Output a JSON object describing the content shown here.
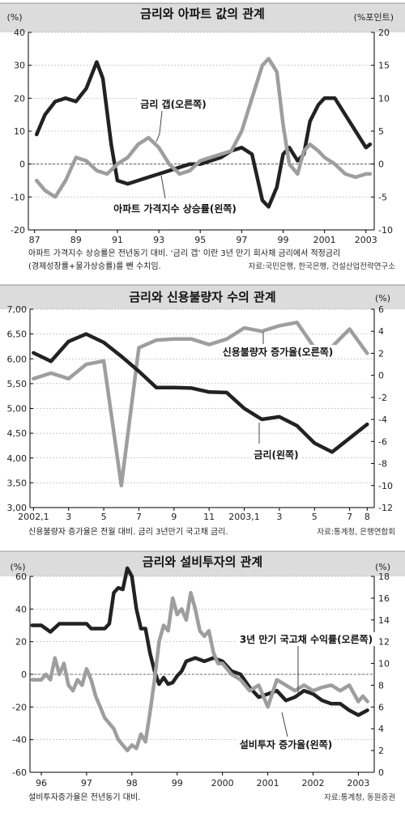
{
  "chart_data": [
    {
      "type": "line",
      "title": "금리와 아파트 값의 관계",
      "ylabel_left": "(%)",
      "ylabel_right": "(%포인트)",
      "ylim_left": [
        -20,
        40
      ],
      "yticks_left": [
        "40",
        "30",
        "20",
        "10",
        "0",
        "-10",
        "-20"
      ],
      "ylim_right": [
        -10,
        20
      ],
      "yticks_right": [
        "20",
        "15",
        "10",
        "5",
        "0",
        "-5",
        "-10"
      ],
      "x_tick_labels": [
        "87",
        "89",
        "91",
        "93",
        "95",
        "97",
        "99",
        "2001",
        "2003"
      ],
      "series": [
        {
          "name": "금리 갭(오른쪽)",
          "axis": "right",
          "color": "#222222",
          "x": [
            1987.1,
            1987.5,
            1988.0,
            1988.5,
            1989.0,
            1989.5,
            1990.0,
            1990.3,
            1990.7,
            1991.0,
            1991.5,
            1992.0,
            1992.5,
            1993.0,
            1993.5,
            1994.0,
            1994.5,
            1995.0,
            1995.5,
            1996.0,
            1996.5,
            1997.0,
            1997.5,
            1998.0,
            1998.3,
            1998.7,
            1999.0,
            1999.3,
            1999.7,
            2000.0,
            2000.3,
            2000.7,
            2001.0,
            2001.5,
            2002.0,
            2002.5,
            2003.0,
            2003.2
          ],
          "values": [
            4.5,
            7.5,
            9.5,
            10.0,
            9.5,
            11.5,
            15.5,
            13.0,
            3.0,
            -2.5,
            -3.0,
            -2.5,
            -2.0,
            -1.5,
            -1.0,
            -0.5,
            0.0,
            0.0,
            0.5,
            1.0,
            2.0,
            2.5,
            1.5,
            -5.5,
            -6.5,
            -3.5,
            1.5,
            2.5,
            0.5,
            1.5,
            6.5,
            9.0,
            10.0,
            10.0,
            7.5,
            5.0,
            2.5,
            3.0
          ]
        },
        {
          "name": "아파트 가격지수 상승률(왼쪽)",
          "axis": "left",
          "color": "#9e9e9e",
          "x": [
            1987.1,
            1987.5,
            1988.0,
            1988.5,
            1989.0,
            1989.5,
            1990.0,
            1990.5,
            1991.0,
            1991.5,
            1992.0,
            1992.5,
            1993.0,
            1993.5,
            1994.0,
            1994.5,
            1995.0,
            1995.5,
            1996.0,
            1996.5,
            1997.0,
            1997.5,
            1998.0,
            1998.3,
            1998.7,
            1999.0,
            1999.3,
            1999.7,
            2000.0,
            2000.3,
            2000.7,
            2001.0,
            2001.5,
            2002.0,
            2002.5,
            2003.0,
            2003.2
          ],
          "values": [
            -5,
            -8,
            -10,
            -5,
            2,
            1,
            -2,
            -3,
            0,
            2,
            6,
            8,
            5,
            0,
            -3,
            -2,
            1,
            2,
            3,
            4,
            10,
            20,
            30,
            32,
            28,
            12,
            0,
            -3,
            4,
            6,
            4,
            2,
            0,
            -3,
            -4,
            -3,
            -3
          ]
        }
      ],
      "labels": {
        "rate_gap": "금리 갭(오른쪽)",
        "apt_index": "아파트 가격지수 상승률(왼쪽)"
      },
      "note_line1": "아파트 가격지수 상승률은 전년동기 대비. ‘금리 갭’ 이란 3년 만기 회사채 금리에서 적정금리",
      "note_line2": "(경제성장률+물가상승률)를 뺀 수치임.",
      "source": "자료:국민은행, 한국은행, 건설산업전략연구소"
    },
    {
      "type": "line",
      "title": "금리와 신용불량자 수의 관계",
      "ylabel_right": "(%)",
      "ylim_left": [
        3.0,
        7.0
      ],
      "yticks_left": [
        "7,00",
        "6,50",
        "6,00",
        "5,50",
        "5,00",
        "4,50",
        "4,00",
        "3,50",
        "3,00"
      ],
      "ylim_right": [
        -12,
        6
      ],
      "yticks_right": [
        "6",
        "4",
        "2",
        "0",
        "-2",
        "-4",
        "-6",
        "-8",
        "-10",
        "-12"
      ],
      "x_tick_labels": [
        "2002,1",
        "3",
        "5",
        "7",
        "9",
        "11",
        "2003,1",
        "3",
        "5",
        "7",
        "8"
      ],
      "series": [
        {
          "name": "신용불량자 증가율(오른쪽)",
          "axis": "right",
          "color": "#9e9e9e",
          "x": [
            0,
            1,
            2,
            3,
            4,
            5,
            6,
            7,
            8,
            9,
            10,
            11,
            12,
            13,
            14,
            15,
            16,
            17,
            18,
            19
          ],
          "values": [
            -0.3,
            0.2,
            -0.3,
            1.0,
            1.3,
            -10.0,
            2.5,
            3.2,
            3.3,
            3.3,
            2.8,
            3.3,
            4.3,
            4.0,
            4.5,
            4.8,
            2.5,
            2.6,
            4.2,
            2.0
          ]
        },
        {
          "name": "금리(왼쪽)",
          "axis": "left",
          "color": "#222222",
          "x": [
            0,
            1,
            2,
            3,
            4,
            5,
            6,
            7,
            8,
            9,
            10,
            11,
            12,
            13,
            14,
            15,
            16,
            17,
            18,
            19
          ],
          "values": [
            6.12,
            5.95,
            6.35,
            6.5,
            6.33,
            6.05,
            5.75,
            5.42,
            5.42,
            5.41,
            5.33,
            5.32,
            5.0,
            4.78,
            4.83,
            4.65,
            4.3,
            4.12,
            4.4,
            4.68
          ]
        }
      ],
      "labels": {
        "delinquency": "신용불량자 증가율(오른쪽)",
        "rate": "금리(왼쪽)"
      },
      "note": "신용불량자 증가율은 전월 대비. 금리 3년만기 국고채 금리.",
      "source": "자료:통계청, 은행연합회"
    },
    {
      "type": "line",
      "title": "금리와 설비투자의 관계",
      "ylabel_left": "(%)",
      "ylabel_right": "(%)",
      "ylim_left": [
        -60,
        60
      ],
      "yticks_left": [
        "60",
        "40",
        "20",
        "0",
        "-20",
        "-40",
        "-60"
      ],
      "ylim_right": [
        0,
        18
      ],
      "yticks_right": [
        "18",
        "16",
        "14",
        "12",
        "10",
        "8",
        "6",
        "4",
        "2",
        "0"
      ],
      "x_tick_labels": [
        "96",
        "97",
        "98",
        "99",
        "2000",
        "2001",
        "2002",
        "2003"
      ],
      "series": [
        {
          "name": "설비투자 증가율(왼쪽)",
          "axis": "left",
          "color": "#222222",
          "x": [
            1995.8,
            1996.0,
            1996.2,
            1996.4,
            1996.6,
            1996.8,
            1997.0,
            1997.1,
            1997.2,
            1997.4,
            1997.5,
            1997.6,
            1997.7,
            1997.8,
            1997.9,
            1998.0,
            1998.1,
            1998.2,
            1998.3,
            1998.4,
            1998.5,
            1998.6,
            1998.7,
            1998.8,
            1998.9,
            1999.0,
            1999.1,
            1999.2,
            1999.4,
            1999.6,
            1999.8,
            2000.0,
            2000.2,
            2000.4,
            2000.6,
            2000.8,
            2001.0,
            2001.2,
            2001.4,
            2001.6,
            2001.8,
            2002.0,
            2002.2,
            2002.4,
            2002.6,
            2002.8,
            2003.0,
            2003.2
          ],
          "values": [
            30,
            30,
            26,
            31,
            31,
            31,
            31,
            28,
            28,
            28,
            31,
            50,
            53,
            52,
            65,
            60,
            40,
            28,
            28,
            13,
            2,
            -6,
            -2,
            -6,
            -5,
            -1,
            2,
            8,
            10,
            8,
            10,
            8,
            2,
            0,
            -8,
            -14,
            -12,
            -10,
            -16,
            -14,
            -10,
            -12,
            -16,
            -18,
            -18,
            -22,
            -25,
            -22
          ]
        },
        {
          "name": "3년 만기 국고채 수익률(오른쪽)",
          "axis": "right",
          "color": "#9e9e9e",
          "x": [
            1995.8,
            1996.0,
            1996.1,
            1996.2,
            1996.3,
            1996.4,
            1996.5,
            1996.6,
            1996.7,
            1996.8,
            1996.9,
            1997.0,
            1997.1,
            1997.2,
            1997.3,
            1997.4,
            1997.5,
            1997.6,
            1997.7,
            1997.8,
            1997.9,
            1998.0,
            1998.1,
            1998.2,
            1998.3,
            1998.4,
            1998.5,
            1998.6,
            1998.7,
            1998.8,
            1998.9,
            1999.0,
            1999.1,
            1999.2,
            1999.3,
            1999.4,
            1999.5,
            1999.6,
            1999.7,
            1999.8,
            1999.9,
            2000.0,
            2000.2,
            2000.4,
            2000.6,
            2000.8,
            2001.0,
            2001.2,
            2001.4,
            2001.6,
            2001.8,
            2002.0,
            2002.2,
            2002.4,
            2002.6,
            2002.8,
            2003.0,
            2003.1,
            2003.2
          ],
          "values": [
            8.5,
            8.5,
            9.0,
            8.5,
            10.5,
            9.0,
            10.0,
            8.0,
            7.5,
            8.5,
            8.0,
            9.5,
            8.5,
            7.0,
            6.0,
            5.0,
            4.5,
            4.0,
            3.0,
            2.5,
            2.0,
            2.5,
            2.2,
            3.5,
            2.8,
            5.5,
            8.5,
            12.0,
            13.5,
            13.0,
            16.0,
            14.5,
            15.0,
            14.0,
            16.5,
            15.0,
            13.0,
            12.5,
            13.0,
            11.0,
            10.0,
            10.0,
            9.0,
            8.5,
            7.5,
            8.0,
            6.0,
            8.5,
            8.0,
            7.5,
            8.0,
            7.5,
            7.8,
            8.0,
            7.5,
            8.0,
            6.5,
            7.0,
            6.5
          ]
        }
      ],
      "labels": {
        "bond_yield": "3년 만기 국고채 수익률(오른쪽)",
        "capex": "설비투자 증가율(왼쪽)"
      },
      "note": "설비투자증가율은 전년동기 대비.",
      "source": "자료:통계청, 동원증권"
    }
  ]
}
